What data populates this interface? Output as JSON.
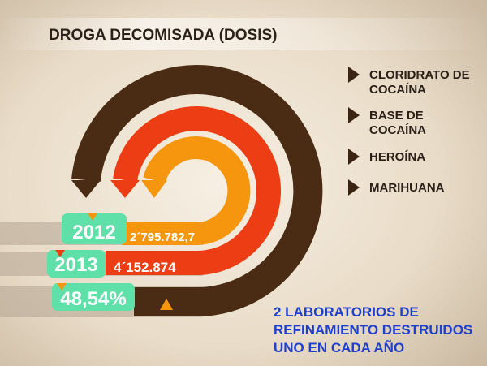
{
  "title": "DROGA DECOMISADA (DOSIS)",
  "legend": [
    {
      "lines": [
        "CLORIDRATO DE",
        "COCAÍNA"
      ]
    },
    {
      "lines": [
        "BASE DE",
        "COCAÍNA"
      ]
    },
    {
      "lines": [
        "HEROÍNA"
      ]
    },
    {
      "lines": [
        "MARIHUANA"
      ]
    }
  ],
  "rows": [
    {
      "label": "2012",
      "value": "2´795.782,7"
    },
    {
      "label": "2013",
      "value": "4´152.874"
    },
    {
      "label": "48,54%"
    }
  ],
  "note": [
    "2 LABORATORIOS DE",
    "REFINAMIENTO DESTRUIDOS",
    "UNO EN CADA AÑO"
  ]
}
